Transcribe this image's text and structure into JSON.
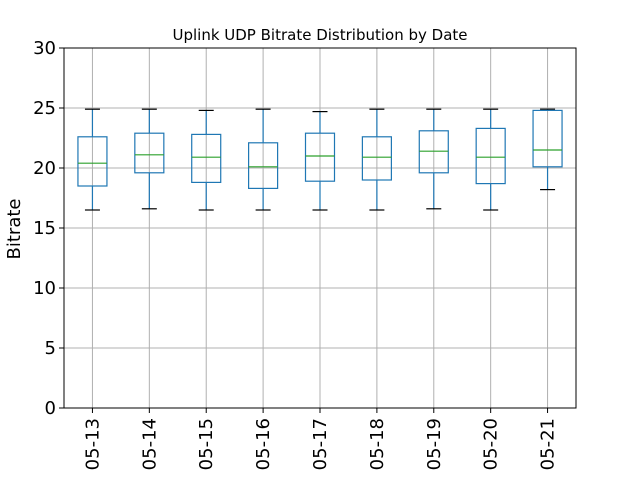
{
  "chart_data": {
    "type": "box",
    "title": "Uplink UDP Bitrate Distribution by Date",
    "xlabel": "",
    "ylabel": "Bitrate",
    "ylim": [
      0,
      30
    ],
    "yticks": [
      0,
      5,
      10,
      15,
      20,
      25,
      30
    ],
    "grid": true,
    "categories": [
      "05-13",
      "05-14",
      "05-15",
      "05-16",
      "05-17",
      "05-18",
      "05-19",
      "05-20",
      "05-21"
    ],
    "boxes": [
      {
        "whisker_low": 16.5,
        "q1": 18.5,
        "median": 20.4,
        "q3": 22.6,
        "whisker_high": 24.9
      },
      {
        "whisker_low": 16.6,
        "q1": 19.6,
        "median": 21.1,
        "q3": 22.9,
        "whisker_high": 24.9
      },
      {
        "whisker_low": 16.5,
        "q1": 18.8,
        "median": 20.9,
        "q3": 22.8,
        "whisker_high": 24.8
      },
      {
        "whisker_low": 16.5,
        "q1": 18.3,
        "median": 20.1,
        "q3": 22.1,
        "whisker_high": 24.9
      },
      {
        "whisker_low": 16.5,
        "q1": 18.9,
        "median": 21.0,
        "q3": 22.9,
        "whisker_high": 24.7
      },
      {
        "whisker_low": 16.5,
        "q1": 19.0,
        "median": 20.9,
        "q3": 22.6,
        "whisker_high": 24.9
      },
      {
        "whisker_low": 16.6,
        "q1": 19.6,
        "median": 21.4,
        "q3": 23.1,
        "whisker_high": 24.9
      },
      {
        "whisker_low": 16.5,
        "q1": 18.7,
        "median": 20.9,
        "q3": 23.3,
        "whisker_high": 24.9
      },
      {
        "whisker_low": 18.2,
        "q1": 20.1,
        "median": 21.5,
        "q3": 24.8,
        "whisker_high": 24.9
      }
    ],
    "colors": {
      "box": "#1f77b4",
      "median": "#2ca02c",
      "grid": "#b0b0b0",
      "cap": "#000000"
    }
  }
}
